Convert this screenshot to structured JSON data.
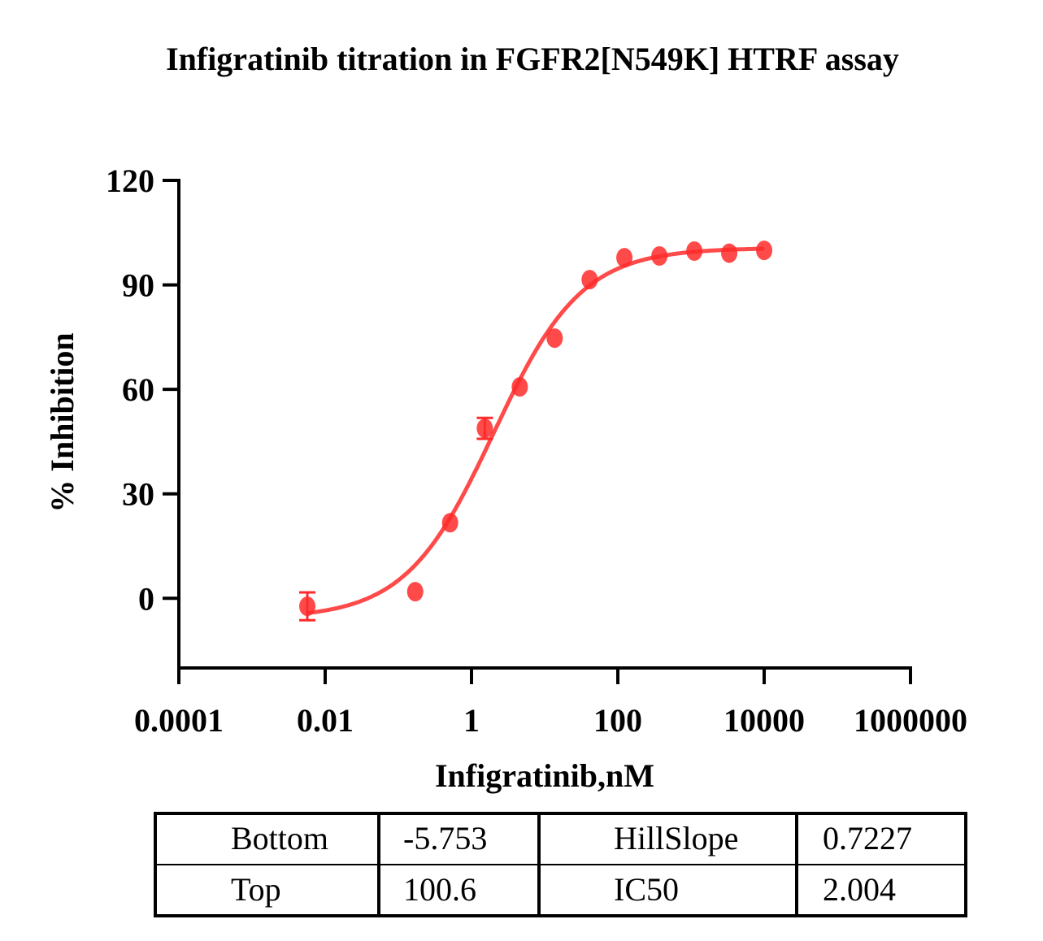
{
  "chart_data": {
    "type": "scatter",
    "title": "Infigratinib titration in FGFR2[N549K] HTRF assay",
    "xlabel": "Infigratinib,nM",
    "ylabel": "% Inhibition",
    "x_scale": "log",
    "xlim": [
      0.0001,
      1000000
    ],
    "ylim": [
      -20,
      120
    ],
    "x_ticks": [
      "0.0001",
      "0.01",
      "1",
      "100",
      "10000",
      "1000000"
    ],
    "y_ticks": [
      "120",
      "90",
      "60",
      "30",
      "0"
    ],
    "y_tick_values": [
      120,
      90,
      60,
      30,
      0
    ],
    "x_tick_values": [
      0.0001,
      0.01,
      1,
      100,
      10000,
      1000000
    ],
    "grid": false,
    "color": "#ff2a2a",
    "series": [
      {
        "x": [
          0.0057,
          0.17,
          0.51,
          1.52,
          4.57,
          13.7,
          41.2,
          123,
          370,
          1111,
          3333,
          10000
        ],
        "y": [
          -2.3,
          1.9,
          21.7,
          48.8,
          60.7,
          74.7,
          91.5,
          97.8,
          98.3,
          99.7,
          99.1,
          99.9
        ],
        "error": [
          4,
          0,
          0,
          3,
          0,
          0,
          0,
          0,
          0,
          0,
          0,
          0
        ]
      }
    ],
    "fit": {
      "model": "four-parameter logistic",
      "Bottom": -5.753,
      "Top": 100.6,
      "IC50": 2.004,
      "HillSlope": 0.7227
    },
    "table": {
      "rows": [
        [
          "Bottom",
          "-5.753",
          "HillSlope",
          "0.7227"
        ],
        [
          "Top",
          "100.6",
          "IC50",
          "2.004"
        ]
      ]
    }
  }
}
